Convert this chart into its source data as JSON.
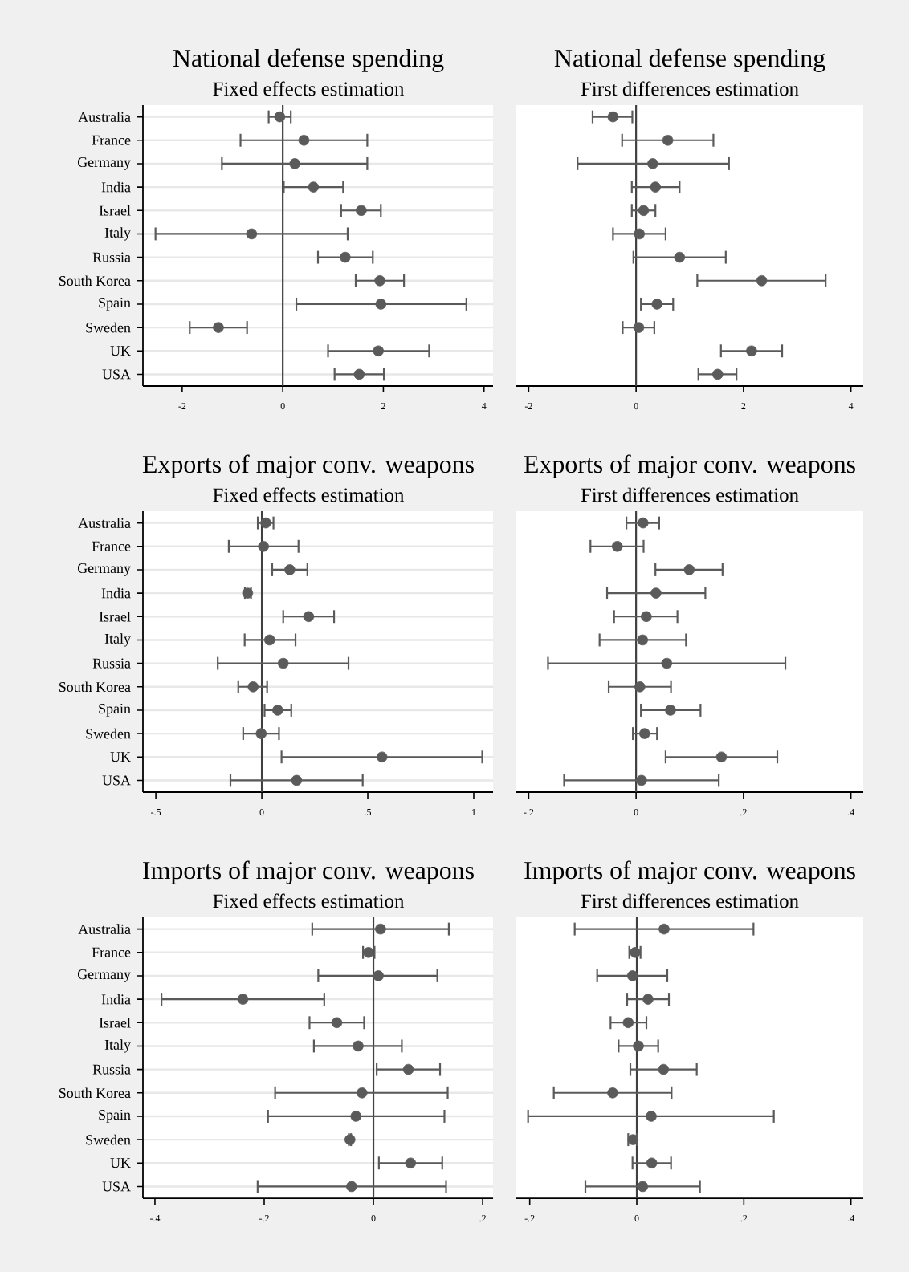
{
  "chart_data": [
    {
      "type": "scatter",
      "orientation": "horizontal",
      "title": "National defense spending",
      "subtitle": "Fixed effects estimation",
      "categories": [
        "Australia",
        "France",
        "Germany",
        "India",
        "Israel",
        "Italy",
        "Russia",
        "South Korea",
        "Spain",
        "Sweden",
        "UK",
        "USA"
      ],
      "color": "#5a5a5a",
      "marker": "circle",
      "grid": "y",
      "xlim": [
        -2.78,
        4.18
      ],
      "xticks": [
        -2,
        0,
        2,
        4
      ],
      "values": [
        -0.06,
        0.42,
        0.24,
        0.61,
        1.56,
        -0.62,
        1.24,
        1.93,
        1.95,
        -1.28,
        1.9,
        1.52
      ],
      "errors": [
        [
          -0.28,
          0.16
        ],
        [
          -0.84,
          1.68
        ],
        [
          -1.21,
          1.68
        ],
        [
          0.02,
          1.2
        ],
        [
          1.16,
          1.95
        ],
        [
          -2.53,
          1.29
        ],
        [
          0.7,
          1.79
        ],
        [
          1.45,
          2.41
        ],
        [
          0.27,
          3.65
        ],
        [
          -1.85,
          -0.71
        ],
        [
          0.9,
          2.91
        ],
        [
          1.03,
          2.01
        ]
      ],
      "ref_lines": [
        {
          "axis": "x",
          "value": 0,
          "color": "#404040"
        }
      ]
    },
    {
      "type": "scatter",
      "orientation": "horizontal",
      "title": "National defense spending",
      "subtitle": "First differences estimation",
      "categories": [
        null,
        null,
        null,
        null,
        null,
        null,
        null,
        null,
        null,
        null,
        null,
        null
      ],
      "tick_labels": "x",
      "color": "#5a5a5a",
      "marker": "circle",
      "grid": "y",
      "xlim": [
        -2.23,
        4.23
      ],
      "xticks": [
        -2,
        0,
        2,
        4
      ],
      "values": [
        -0.43,
        0.59,
        0.31,
        0.36,
        0.14,
        0.06,
        0.81,
        2.34,
        0.39,
        0.05,
        2.15,
        1.52
      ],
      "errors": [
        [
          -0.81,
          -0.07
        ],
        [
          -0.26,
          1.44
        ],
        [
          -1.09,
          1.73
        ],
        [
          -0.08,
          0.81
        ],
        [
          -0.08,
          0.36
        ],
        [
          -0.43,
          0.55
        ],
        [
          -0.05,
          1.67
        ],
        [
          1.14,
          3.53
        ],
        [
          0.09,
          0.69
        ],
        [
          -0.25,
          0.34
        ],
        [
          1.58,
          2.72
        ],
        [
          1.16,
          1.87
        ]
      ],
      "ref_lines": [
        {
          "axis": "x",
          "value": 0,
          "color": "#404040"
        }
      ]
    },
    {
      "type": "scatter",
      "orientation": "horizontal",
      "title": "Exports of major conv. weapons",
      "subtitle": "Fixed effects estimation",
      "categories": [
        "Australia",
        "France",
        "Germany",
        "India",
        "Israel",
        "Italy",
        "Russia",
        "South Korea",
        "Spain",
        "Sweden",
        "UK",
        "USA"
      ],
      "color": "#5a5a5a",
      "marker": "circle",
      "grid": "y",
      "xlim": [
        -0.561,
        1.091
      ],
      "xticks": [
        {
          "value": -0.5,
          "label": "-.5"
        },
        0,
        {
          "value": 0.5,
          "label": ".5"
        },
        1
      ],
      "values": [
        0.019,
        0.008,
        0.132,
        -0.067,
        0.221,
        0.037,
        0.101,
        -0.041,
        0.075,
        -0.003,
        0.567,
        0.164
      ],
      "errors": [
        [
          -0.019,
          0.055
        ],
        [
          -0.156,
          0.173
        ],
        [
          0.049,
          0.215
        ],
        [
          -0.08,
          -0.051
        ],
        [
          0.101,
          0.341
        ],
        [
          -0.081,
          0.159
        ],
        [
          -0.208,
          0.409
        ],
        [
          -0.111,
          0.025
        ],
        [
          0.013,
          0.139
        ],
        [
          -0.088,
          0.081
        ],
        [
          0.093,
          1.04
        ],
        [
          -0.148,
          0.476
        ]
      ],
      "ref_lines": [
        {
          "axis": "x",
          "value": 0,
          "color": "#404040"
        }
      ]
    },
    {
      "type": "scatter",
      "orientation": "horizontal",
      "title": "Exports of major conv. weapons",
      "subtitle": "First differences estimation",
      "categories": [
        null,
        null,
        null,
        null,
        null,
        null,
        null,
        null,
        null,
        null,
        null,
        null
      ],
      "tick_labels": "x",
      "color": "#5a5a5a",
      "marker": "circle",
      "grid": "y",
      "xlim": [
        -0.223,
        0.423
      ],
      "xticks": [
        {
          "value": -0.2,
          "label": "-.2"
        },
        0,
        {
          "value": 0.2,
          "label": ".2"
        },
        {
          "value": 0.4,
          "label": ".4"
        }
      ],
      "values": [
        0.013,
        -0.035,
        0.099,
        0.037,
        0.019,
        0.012,
        0.057,
        0.007,
        0.064,
        0.016,
        0.159,
        0.01
      ],
      "errors": [
        [
          -0.018,
          0.043
        ],
        [
          -0.085,
          0.014
        ],
        [
          0.036,
          0.161
        ],
        [
          -0.054,
          0.129
        ],
        [
          -0.041,
          0.077
        ],
        [
          -0.068,
          0.093
        ],
        [
          -0.164,
          0.278
        ],
        [
          -0.051,
          0.065
        ],
        [
          0.009,
          0.12
        ],
        [
          -0.006,
          0.039
        ],
        [
          0.055,
          0.263
        ],
        [
          -0.134,
          0.154
        ]
      ],
      "ref_lines": [
        {
          "axis": "x",
          "value": 0,
          "color": "#404040"
        }
      ]
    },
    {
      "type": "scatter",
      "orientation": "horizontal",
      "title": "Imports of major conv. weapons",
      "subtitle": "Fixed effects estimation",
      "categories": [
        "Australia",
        "France",
        "Germany",
        "India",
        "Israel",
        "Italy",
        "Russia",
        "South Korea",
        "Spain",
        "Sweden",
        "UK",
        "USA"
      ],
      "color": "#5a5a5a",
      "marker": "circle",
      "grid": "y",
      "xlim": [
        -0.422,
        0.219
      ],
      "xticks": [
        {
          "value": -0.4,
          "label": "-.4"
        },
        {
          "value": -0.2,
          "label": "-.2"
        },
        0,
        {
          "value": 0.2,
          "label": ".2"
        }
      ],
      "values": [
        0.013,
        -0.009,
        0.009,
        -0.239,
        -0.067,
        -0.028,
        0.064,
        -0.021,
        -0.032,
        -0.043,
        0.068,
        -0.04
      ],
      "errors": [
        [
          -0.112,
          0.138
        ],
        [
          -0.019,
          0.002
        ],
        [
          -0.101,
          0.117
        ],
        [
          -0.388,
          -0.09
        ],
        [
          -0.117,
          -0.017
        ],
        [
          -0.109,
          0.052
        ],
        [
          0.006,
          0.122
        ],
        [
          -0.18,
          0.136
        ],
        [
          -0.193,
          0.13
        ],
        [
          -0.045,
          -0.041
        ],
        [
          0.01,
          0.126
        ],
        [
          -0.212,
          0.133
        ]
      ],
      "ref_lines": [
        {
          "axis": "x",
          "value": 0,
          "color": "#404040"
        }
      ]
    },
    {
      "type": "scatter",
      "orientation": "horizontal",
      "title": "Imports of major conv. weapons",
      "subtitle": "First differences estimation",
      "categories": [
        null,
        null,
        null,
        null,
        null,
        null,
        null,
        null,
        null,
        null,
        null,
        null
      ],
      "tick_labels": "x",
      "color": "#5a5a5a",
      "marker": "circle",
      "grid": "y",
      "xlim": [
        -0.225,
        0.423
      ],
      "xticks": [
        {
          "value": -0.2,
          "label": "-.2"
        },
        0,
        {
          "value": 0.2,
          "label": ".2"
        },
        {
          "value": 0.4,
          "label": ".4"
        }
      ],
      "values": [
        0.051,
        -0.003,
        -0.008,
        0.021,
        -0.016,
        0.003,
        0.05,
        -0.045,
        0.027,
        -0.007,
        0.028,
        0.011
      ],
      "errors": [
        [
          -0.116,
          0.218
        ],
        [
          -0.014,
          0.007
        ],
        [
          -0.074,
          0.057
        ],
        [
          -0.018,
          0.06
        ],
        [
          -0.049,
          0.018
        ],
        [
          -0.034,
          0.04
        ],
        [
          -0.012,
          0.112
        ],
        [
          -0.155,
          0.065
        ],
        [
          -0.203,
          0.256
        ],
        [
          -0.016,
          0.0
        ],
        [
          -0.008,
          0.064
        ],
        [
          -0.096,
          0.118
        ]
      ],
      "ref_lines": [
        {
          "axis": "x",
          "value": 0,
          "color": "#404040"
        }
      ]
    }
  ]
}
